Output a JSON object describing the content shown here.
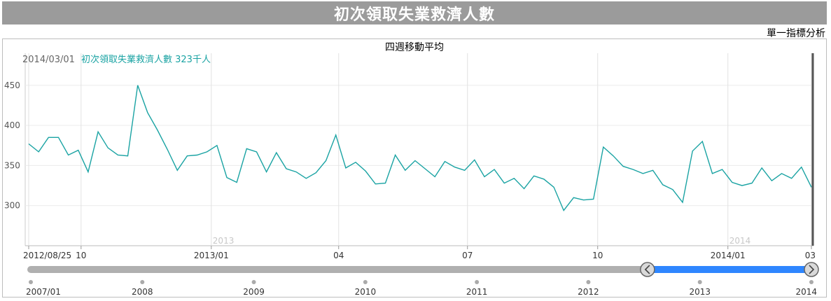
{
  "header": {
    "title": "初次領取失業救濟人數",
    "analysis_link": "單一指標分析"
  },
  "legend": {
    "date": "2014/03/01",
    "series_label": "初次領取失業救濟人數 323千人"
  },
  "colors": {
    "line": "#1aa3a3",
    "title_bar": "#9b9b9b",
    "slider_range": "#2e86ff",
    "slider_track": "#b0b0b0"
  },
  "chart_data": {
    "type": "line",
    "title": "四週移動平均",
    "ylim": [
      250,
      490
    ],
    "yticks": [
      300,
      350,
      400,
      450
    ],
    "x_start": "2012/08/25",
    "x_end": "2014/03/01",
    "x_interval_days": 7,
    "x_tick_labels": [
      {
        "label": "2012/08/25",
        "date": "2012-08-25"
      },
      {
        "label": "10",
        "date": "2012-10-01"
      },
      {
        "label": "2013/01",
        "date": "2013-01-01"
      },
      {
        "label": "04",
        "date": "2013-04-01"
      },
      {
        "label": "07",
        "date": "2013-07-01"
      },
      {
        "label": "10",
        "date": "2013-10-01"
      },
      {
        "label": "2014/01",
        "date": "2014-01-01"
      },
      {
        "label": "03",
        "date": "2014-03-01"
      }
    ],
    "year_labels": [
      {
        "label": "2013",
        "date": "2013-01-01"
      },
      {
        "label": "2014",
        "date": "2014-01-01"
      }
    ],
    "series": [
      {
        "values": [
          377,
          367,
          385,
          385,
          363,
          369,
          342,
          392,
          372,
          363,
          362,
          450,
          416,
          394,
          370,
          344,
          362,
          363,
          367,
          375,
          335,
          329,
          371,
          367,
          342,
          366,
          346,
          342,
          334,
          341,
          356,
          388,
          347,
          354,
          343,
          327,
          328,
          363,
          344,
          356,
          346,
          336,
          355,
          348,
          344,
          357,
          336,
          345,
          328,
          334,
          321,
          337,
          333,
          323,
          294,
          310,
          307,
          308,
          373,
          362,
          349,
          345,
          340,
          344,
          326,
          320,
          304,
          368,
          380,
          340,
          345,
          329,
          325,
          328,
          347,
          331,
          340,
          334,
          348,
          323
        ]
      }
    ]
  },
  "navigator": {
    "years": [
      "2007/01",
      "2008",
      "2009",
      "2010",
      "2011",
      "2012",
      "2013",
      "2014"
    ],
    "range_start_fraction": 0.79,
    "range_end_fraction": 1.0
  }
}
